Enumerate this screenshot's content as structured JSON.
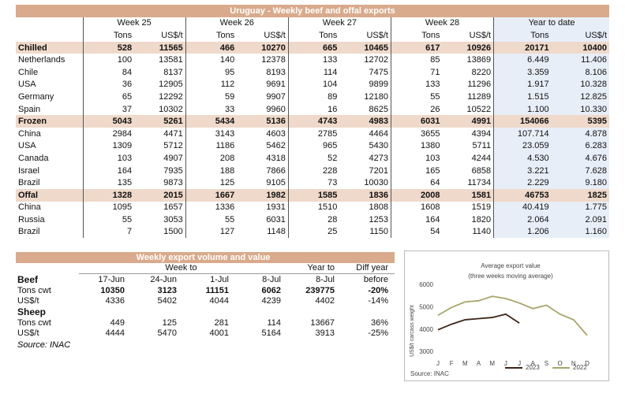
{
  "main_table": {
    "title": "Uruguay - Weekly beef and offal exports",
    "weeks": [
      "Week 25",
      "Week 26",
      "Week 27",
      "Week 28"
    ],
    "ytd": "Year to date",
    "subheaders": [
      "Tons",
      "US$/t",
      "Tons",
      "US$/t",
      "Tons",
      "US$/t",
      "Tons",
      "US$/t",
      "Tons",
      "US$/t"
    ],
    "rows": [
      {
        "label": "Chilled",
        "section": true,
        "cells": [
          "528",
          "11565",
          "466",
          "10270",
          "665",
          "10465",
          "617",
          "10926",
          "20171",
          "10400"
        ]
      },
      {
        "label": "Netherlands",
        "cells": [
          "100",
          "13581",
          "140",
          "12378",
          "133",
          "12702",
          "85",
          "13869",
          "6.449",
          "11.406"
        ]
      },
      {
        "label": "Chile",
        "cells": [
          "84",
          "8137",
          "95",
          "8193",
          "114",
          "7475",
          "71",
          "8220",
          "3.359",
          "8.106"
        ]
      },
      {
        "label": "USA",
        "cells": [
          "36",
          "12905",
          "112",
          "9691",
          "104",
          "9899",
          "133",
          "11296",
          "1.917",
          "10.328"
        ]
      },
      {
        "label": "Germany",
        "cells": [
          "65",
          "12292",
          "59",
          "9907",
          "89",
          "12180",
          "55",
          "11289",
          "1.515",
          "12.825"
        ]
      },
      {
        "label": "Spain",
        "cells": [
          "37",
          "10302",
          "33",
          "9960",
          "16",
          "8625",
          "26",
          "10522",
          "1.100",
          "10.330"
        ]
      },
      {
        "label": "Frozen",
        "section": true,
        "cells": [
          "5043",
          "5261",
          "5434",
          "5136",
          "4743",
          "4983",
          "6031",
          "4991",
          "154066",
          "5395"
        ]
      },
      {
        "label": "China",
        "cells": [
          "2984",
          "4471",
          "3143",
          "4603",
          "2785",
          "4464",
          "3655",
          "4394",
          "107.714",
          "4.878"
        ]
      },
      {
        "label": "USA",
        "cells": [
          "1309",
          "5712",
          "1186",
          "5462",
          "965",
          "5430",
          "1380",
          "5711",
          "23.059",
          "6.283"
        ]
      },
      {
        "label": "Canada",
        "cells": [
          "103",
          "4907",
          "208",
          "4318",
          "52",
          "4273",
          "103",
          "4244",
          "4.530",
          "4.676"
        ]
      },
      {
        "label": "Israel",
        "cells": [
          "164",
          "7935",
          "188",
          "7866",
          "228",
          "7201",
          "165",
          "6858",
          "3.221",
          "7.628"
        ]
      },
      {
        "label": "Brazil",
        "cells": [
          "135",
          "9873",
          "125",
          "9105",
          "73",
          "10030",
          "64",
          "11734",
          "2.229",
          "9.180"
        ]
      },
      {
        "label": "Offal",
        "section": true,
        "cells": [
          "1328",
          "2015",
          "1667",
          "1982",
          "1585",
          "1836",
          "2008",
          "1581",
          "46753",
          "1825"
        ]
      },
      {
        "label": "China",
        "cells": [
          "1095",
          "1657",
          "1336",
          "1931",
          "1510",
          "1808",
          "1608",
          "1519",
          "40.419",
          "1.775"
        ]
      },
      {
        "label": "Russia",
        "cells": [
          "55",
          "3053",
          "55",
          "6031",
          "28",
          "1253",
          "164",
          "1820",
          "2.064",
          "2.091"
        ]
      },
      {
        "label": "Brazil",
        "cells": [
          "7",
          "1500",
          "127",
          "1148",
          "25",
          "1150",
          "54",
          "1140",
          "1.206",
          "1.160"
        ]
      }
    ]
  },
  "summary_table": {
    "title": "Weekly export volume and value",
    "header1": [
      "Week to",
      "Year to",
      "Diff year"
    ],
    "header2": [
      "Beef",
      "17-Jun",
      "24-Jun",
      "1-Jul",
      "8-Jul",
      "8-Jul",
      "before"
    ],
    "rows": [
      {
        "bold": true,
        "cells": [
          "Tons cwt",
          "10350",
          "3123",
          "11151",
          "6062",
          "239775",
          "-20%"
        ]
      },
      {
        "cells": [
          "US$/t",
          "4336",
          "5402",
          "4044",
          "4239",
          "4402",
          "-14%"
        ]
      },
      {
        "section": true,
        "cells": [
          "Sheep"
        ]
      },
      {
        "cells": [
          "Tons cwt",
          "449",
          "125",
          "281",
          "114",
          "13667",
          "36%"
        ]
      },
      {
        "cells": [
          "US$/t",
          "4444",
          "5470",
          "4001",
          "5164",
          "3913",
          "-25%"
        ]
      }
    ],
    "source": "Source: INAC"
  },
  "chart_data": {
    "type": "line",
    "title": "Average export  value",
    "subtitle": "(three weeks moving average)",
    "y_label": "US$/t carcass weight",
    "source": "Source: INAC",
    "categories": [
      "J",
      "F",
      "M",
      "A",
      "M",
      "J",
      "J",
      "A",
      "S",
      "O",
      "N",
      "D"
    ],
    "series": [
      {
        "name": "2023",
        "color": "#3d2418",
        "values": [
          4000,
          4250,
          4450,
          4500,
          4550,
          4700,
          4300,
          null,
          null,
          null,
          null,
          null
        ]
      },
      {
        "name": "2022",
        "color": "#a8a56a",
        "values": [
          4650,
          5000,
          5250,
          5300,
          5500,
          5400,
          5200,
          4950,
          5100,
          4700,
          4450,
          3750
        ]
      }
    ],
    "ylim": [
      3000,
      6000
    ],
    "yticks": [
      3000,
      4000,
      5000,
      6000
    ],
    "grid": false
  }
}
